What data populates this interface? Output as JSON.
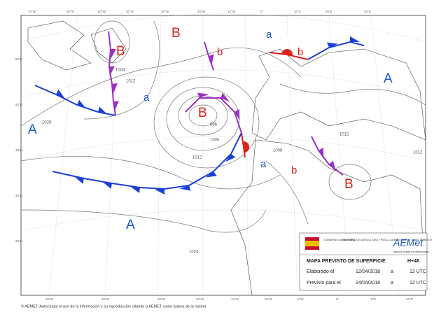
{
  "centers": [
    "B",
    "B",
    "b",
    "B",
    "a",
    "A",
    "A",
    "a",
    "b",
    "A",
    "a",
    "b",
    "B"
  ],
  "isobar_labels": [
    "1028",
    "1012",
    "1012",
    "1000",
    "996",
    "1004",
    "1012",
    "1012",
    "1024",
    "1008"
  ],
  "top_longitudes": [
    "70°W",
    "60°W",
    "50°W",
    "40°W",
    "30°W",
    "20°W",
    "10°W",
    "0°",
    "10°E",
    "20°E",
    "30°E"
  ],
  "bottom_longitudes": [
    "50°W",
    "40°W",
    "30°W",
    "20°W",
    "15°W",
    "10°W",
    "5°W",
    "0°",
    "5°E",
    "10°E"
  ],
  "left_latitudes": [
    "60°N",
    "50°N",
    "40°N",
    "30°N",
    "20°N"
  ],
  "info": {
    "government": "GOBIERNO DE ESPAÑA",
    "ministry": "MINISTERIO DE AGRICULTURA Y PESCA, ALIMENTACIÓN Y MEDIO AMBIENTE",
    "logo": "AEMet",
    "agency": "Agencia Estatal de Meteorología",
    "title": "MAPA PREVISTO DE SUPERFICIE",
    "horizon": "H+48",
    "issued": {
      "label": "Elaborado el",
      "date": "12/04/2018",
      "at": "a",
      "time": "12 UTC"
    },
    "valid": {
      "label": "Previsto para el",
      "date": "14/04/2018",
      "at": "a",
      "time": "12 UTC"
    }
  },
  "copyright": "© AEMET. Autorizado el uso de la información y su reproducción citando a AEMET como autora de la misma"
}
